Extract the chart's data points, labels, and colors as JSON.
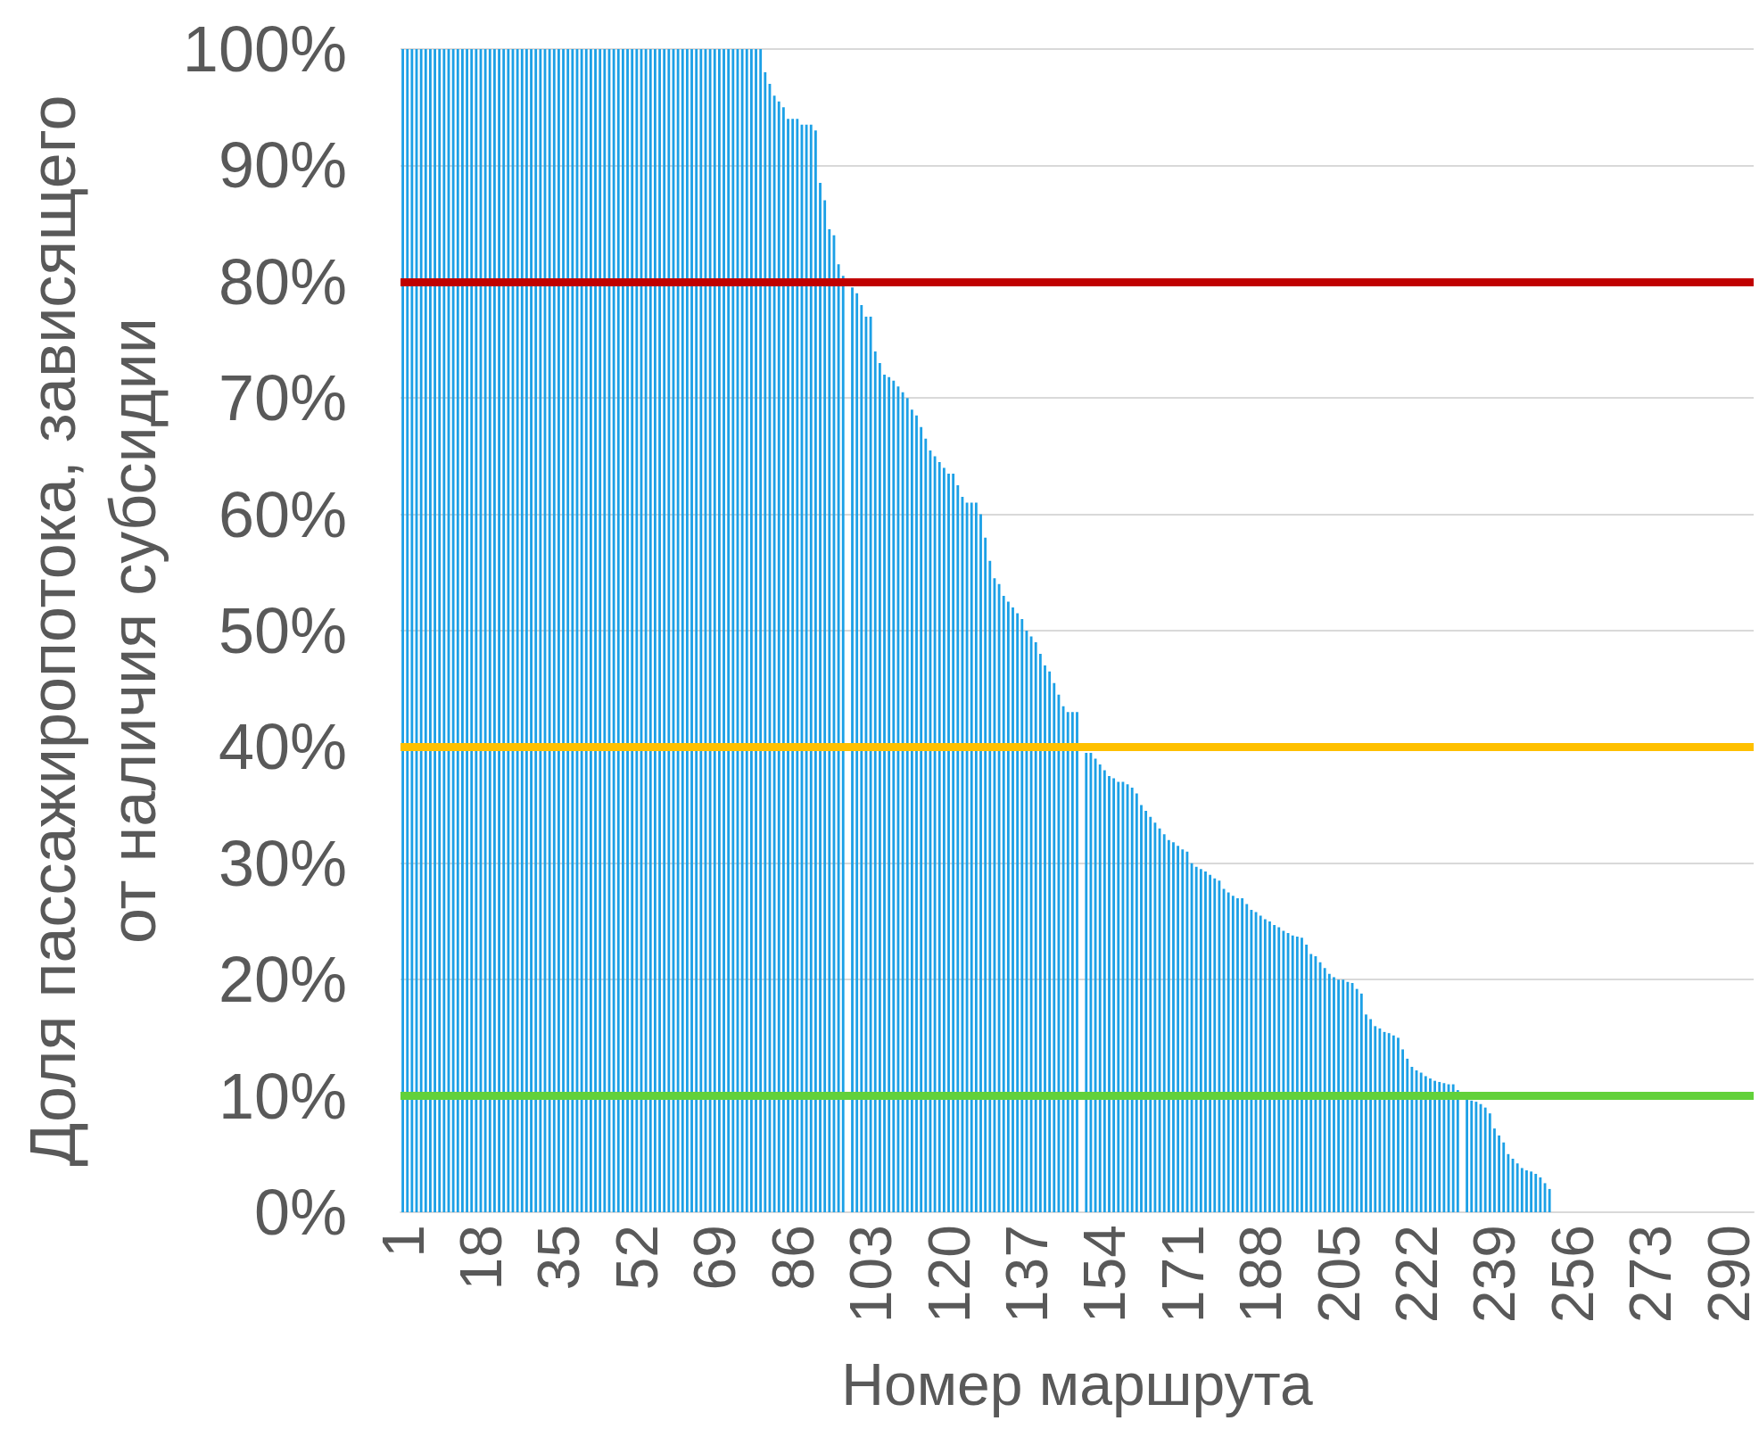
{
  "chart_data": {
    "type": "bar",
    "xlabel": "Номер маршрута",
    "ylabel": "Доля пассажиропотока, зависящего от наличия субсидии",
    "categories": [
      "1",
      null,
      null,
      null,
      null,
      null,
      null,
      null,
      null,
      null,
      null,
      null,
      null,
      null,
      null,
      null,
      null,
      "18",
      null,
      null,
      null,
      null,
      null,
      null,
      null,
      null,
      null,
      null,
      null,
      null,
      null,
      null,
      null,
      null,
      "35",
      null,
      null,
      null,
      null,
      null,
      null,
      null,
      null,
      null,
      null,
      null,
      null,
      null,
      null,
      null,
      null,
      "52",
      null,
      null,
      null,
      null,
      null,
      null,
      null,
      null,
      null,
      null,
      null,
      null,
      null,
      null,
      null,
      null,
      "69",
      null,
      null,
      null,
      null,
      null,
      null,
      null,
      null,
      null,
      null,
      null,
      null,
      null,
      null,
      null,
      null,
      "86",
      null,
      null,
      null,
      null,
      null,
      null,
      null,
      null,
      null,
      null,
      null,
      null,
      null,
      null,
      null,
      null,
      "103",
      null,
      null,
      null,
      null,
      null,
      null,
      null,
      null,
      null,
      null,
      null,
      null,
      null,
      null,
      null,
      null,
      "120",
      null,
      null,
      null,
      null,
      null,
      null,
      null,
      null,
      null,
      null,
      null,
      null,
      null,
      null,
      null,
      null,
      "137",
      null,
      null,
      null,
      null,
      null,
      null,
      null,
      null,
      null,
      null,
      null,
      null,
      null,
      null,
      null,
      null,
      "154",
      null,
      null,
      null,
      null,
      null,
      null,
      null,
      null,
      null,
      null,
      null,
      null,
      null,
      null,
      null,
      null,
      "171",
      null,
      null,
      null,
      null,
      null,
      null,
      null,
      null,
      null,
      null,
      null,
      null,
      null,
      null,
      null,
      null,
      "188",
      null,
      null,
      null,
      null,
      null,
      null,
      null,
      null,
      null,
      null,
      null,
      null,
      null,
      null,
      null,
      null,
      "205",
      null,
      null,
      null,
      null,
      null,
      null,
      null,
      null,
      null,
      null,
      null,
      null,
      null,
      null,
      null,
      null,
      "222",
      null,
      null,
      null,
      null,
      null,
      null,
      null,
      null,
      null,
      null,
      null,
      null,
      null,
      null,
      null,
      null,
      "239",
      null,
      null,
      null,
      null,
      null,
      null,
      null,
      null,
      null,
      null,
      null,
      null,
      null,
      null,
      null,
      null,
      "256",
      null,
      null,
      null,
      null,
      null,
      null,
      null,
      null,
      null,
      null,
      null,
      null,
      null,
      null,
      null,
      null,
      "273",
      null,
      null,
      null,
      null,
      null,
      null,
      null,
      null,
      null,
      null,
      null,
      null,
      null,
      null,
      null,
      null,
      "290",
      null,
      null,
      null,
      null,
      null
    ],
    "values": [
      100,
      100,
      100,
      100,
      100,
      100,
      100,
      100,
      100,
      100,
      100,
      100,
      100,
      100,
      100,
      100,
      100,
      100,
      100,
      100,
      100,
      100,
      100,
      100,
      100,
      100,
      100,
      100,
      100,
      100,
      100,
      100,
      100,
      100,
      100,
      100,
      100,
      100,
      100,
      100,
      100,
      100,
      100,
      100,
      100,
      100,
      100,
      100,
      100,
      100,
      100,
      100,
      100,
      100,
      100,
      100,
      100,
      100,
      100,
      100,
      100,
      100,
      100,
      100,
      100,
      100,
      100,
      100,
      100,
      100,
      100,
      100,
      100,
      100,
      100,
      100,
      100,
      100,
      100,
      98,
      97,
      96,
      95.5,
      95,
      94,
      94,
      94,
      93.5,
      93.5,
      93.5,
      93,
      88.5,
      87,
      84.5,
      84,
      81.5,
      80.5,
      null,
      79.5,
      79,
      78,
      77,
      77,
      74,
      73,
      72,
      71.8,
      71.5,
      71,
      70.5,
      70,
      69,
      68.5,
      67.5,
      66.5,
      65.5,
      65,
      64.5,
      64,
      63.5,
      63.5,
      62.5,
      61.5,
      61,
      61,
      61,
      60,
      58,
      56,
      54.5,
      54,
      53,
      52.5,
      52,
      51.5,
      51,
      50,
      49.5,
      49,
      48,
      47,
      46.5,
      45.5,
      44.5,
      43.5,
      43,
      43,
      43,
      null,
      39.5,
      39.5,
      39,
      38.5,
      38,
      37.5,
      37.3,
      37,
      37,
      36.8,
      36.5,
      36,
      35,
      34.5,
      34,
      33.5,
      33,
      32.5,
      32,
      31.8,
      31.5,
      31.2,
      31,
      30,
      29.7,
      29.5,
      29.3,
      29,
      28.7,
      28.5,
      27.8,
      27.5,
      27.2,
      27,
      27,
      26.5,
      26,
      25.8,
      25.5,
      25.2,
      25,
      24.7,
      24.5,
      24.2,
      24,
      23.8,
      23.7,
      23.6,
      23,
      22.2,
      22,
      21.5,
      21,
      20.5,
      20.2,
      20,
      20,
      19.8,
      19.7,
      19.2,
      18.8,
      17,
      16.6,
      16,
      15.8,
      15.5,
      15.4,
      15.2,
      15,
      14,
      13.2,
      12.5,
      12.2,
      12,
      11.7,
      11.5,
      11.3,
      11.2,
      11.1,
      11,
      11,
      10.5,
      null,
      9.8,
      9.6,
      9.5,
      9.3,
      9,
      8.5,
      7.2,
      6.6,
      6,
      5,
      4.6,
      4.2,
      3.8,
      3.6,
      3.5,
      3.3,
      3,
      2.5,
      2,
      null,
      null,
      null,
      null,
      null,
      null,
      null,
      null,
      null,
      null,
      null,
      null,
      null,
      null,
      null,
      null,
      null,
      null,
      null,
      null,
      null,
      null,
      null,
      null,
      null,
      null,
      null,
      null,
      null,
      null,
      null,
      null,
      null,
      null,
      null,
      null,
      null,
      null,
      null,
      null,
      null,
      null,
      null,
      null
    ],
    "color": "#1ca0e6",
    "ylim": [
      0,
      100
    ],
    "yticks": [
      {
        "value": 0,
        "label": "0%"
      },
      {
        "value": 10,
        "label": "10%"
      },
      {
        "value": 20,
        "label": "20%"
      },
      {
        "value": 30,
        "label": "30%"
      },
      {
        "value": 40,
        "label": "40%"
      },
      {
        "value": 50,
        "label": "50%"
      },
      {
        "value": 60,
        "label": "60%"
      },
      {
        "value": 70,
        "label": "70%"
      },
      {
        "value": 80,
        "label": "80%"
      },
      {
        "value": 90,
        "label": "90%"
      },
      {
        "value": 100,
        "label": "100%"
      }
    ],
    "grid": "y",
    "ref_lines": [
      {
        "axis": "y",
        "value": 80,
        "color": "#c00000"
      },
      {
        "axis": "y",
        "value": 40,
        "color": "#ffc000"
      },
      {
        "axis": "y",
        "value": 10,
        "color": "#62d13a"
      }
    ]
  }
}
